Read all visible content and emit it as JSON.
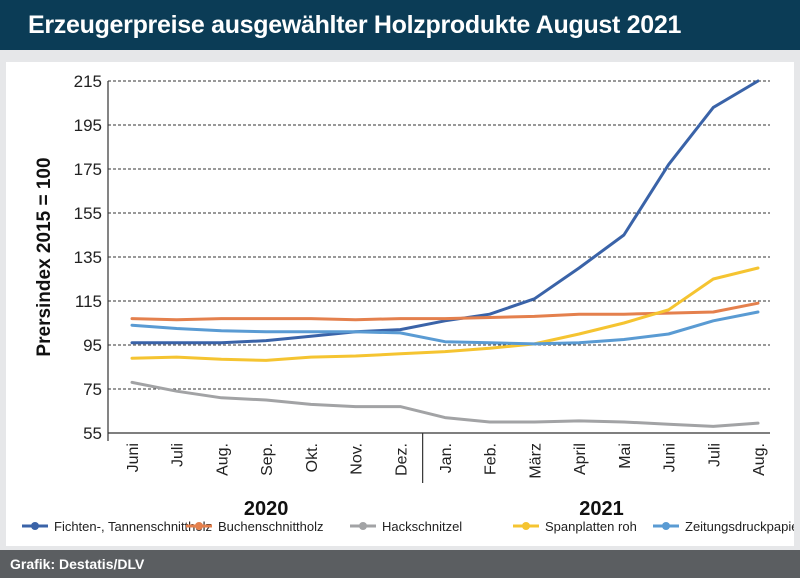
{
  "title": "Erzeugerpreise ausgewählter Holzprodukte August 2021",
  "footer": "Grafik: Destatis/DLV",
  "chart_data": {
    "type": "line",
    "ylabel": "Prersindex 2015 = 100",
    "ylim": [
      55,
      215
    ],
    "yticks": [
      55,
      75,
      95,
      115,
      135,
      155,
      175,
      195,
      215
    ],
    "grid": true,
    "legend_position": "bottom",
    "categories": [
      "Juni",
      "Juli",
      "Aug.",
      "Sep.",
      "Okt.",
      "Nov.",
      "Dez.",
      "Jan.",
      "Feb.",
      "März",
      "April",
      "Mai",
      "Juni",
      "Juli",
      "Aug."
    ],
    "year_groups": [
      {
        "label": "2020",
        "start": 0,
        "end": 6
      },
      {
        "label": "2021",
        "start": 7,
        "end": 14
      }
    ],
    "series": [
      {
        "name": "Fichten-, Tannenschnittholz",
        "color": "#3a63a8",
        "values": [
          96,
          96,
          96,
          97,
          99,
          101,
          102,
          106,
          109,
          116,
          130,
          145,
          177,
          203,
          215
        ]
      },
      {
        "name": "Buchenschnittholz",
        "color": "#e4804d",
        "values": [
          107,
          106.5,
          107,
          107,
          107,
          106.5,
          107,
          107,
          107.5,
          108,
          109,
          109,
          109.5,
          110,
          114
        ]
      },
      {
        "name": "Hackschnitzel",
        "color": "#a2a3a5",
        "values": [
          78,
          74,
          71,
          70,
          68,
          67,
          67,
          62,
          60,
          60,
          60.5,
          60,
          59,
          58,
          59.5
        ]
      },
      {
        "name": "Spanplatten roh",
        "color": "#f5c431",
        "values": [
          89,
          89.5,
          88.5,
          88,
          89.5,
          90,
          91,
          92,
          93.5,
          95.5,
          100,
          105,
          111,
          125,
          130
        ]
      },
      {
        "name": "Zeitungsdruckpapier",
        "color": "#5a9bd3",
        "values": [
          104,
          102.5,
          101.5,
          101,
          101,
          101,
          100.5,
          96.5,
          96,
          95.5,
          96,
          97.5,
          100,
          106,
          110
        ]
      }
    ]
  }
}
